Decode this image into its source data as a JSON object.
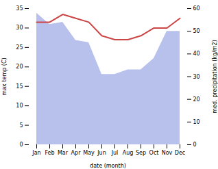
{
  "chart_data": {
    "type": "line",
    "xlabel": "date (month)",
    "ylabel": "max temp (C)",
    "y2label": "med. precipitation (kg/m2)",
    "categories": [
      "Jan",
      "Feb",
      "Mar",
      "Apr",
      "May",
      "Jun",
      "Jul",
      "Aug",
      "Sep",
      "Oct",
      "Nov",
      "Dec"
    ],
    "series": [
      {
        "type": "area",
        "axis": "y2",
        "color": "#b8c0ec",
        "values": [
          58,
          53,
          54,
          46,
          45,
          31,
          31,
          33,
          33,
          38,
          50,
          50
        ]
      },
      {
        "type": "line",
        "color": "#cc4444",
        "values": [
          31.5,
          31.5,
          33.5,
          32.5,
          31.5,
          28.0,
          27.0,
          27.0,
          28.0,
          30.0,
          30.0,
          32.5
        ]
      }
    ],
    "ylim": [
      0,
      35
    ],
    "yticks": [
      0,
      5,
      10,
      15,
      20,
      25,
      30,
      35
    ],
    "y2lim": [
      0,
      60
    ],
    "y2ticks": [
      0,
      10,
      20,
      30,
      40,
      50,
      60
    ],
    "grid": false
  }
}
